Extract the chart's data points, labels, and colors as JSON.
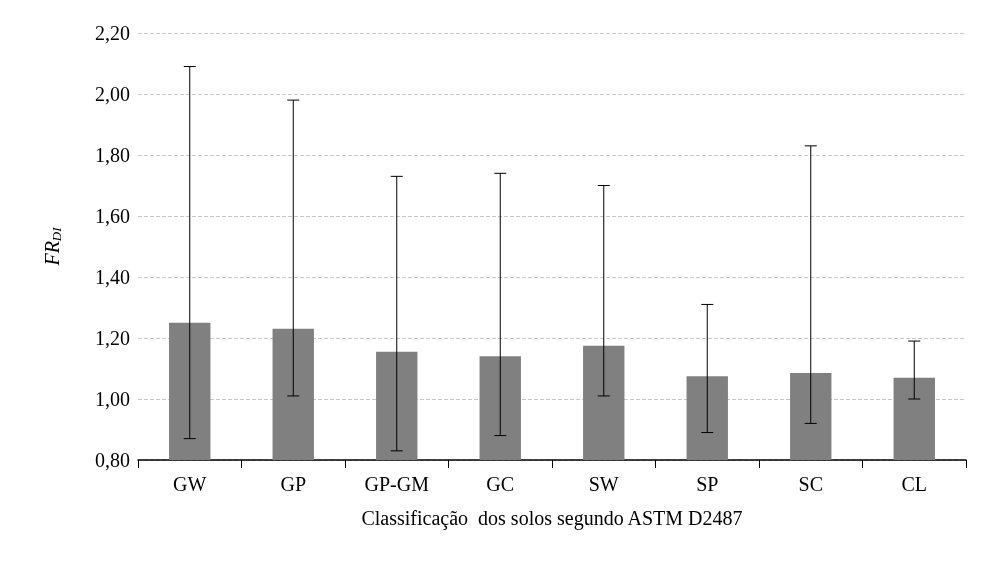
{
  "chart_data": {
    "type": "bar",
    "xlabel": "Classificação  dos solos segundo ASTM D2487",
    "ylabel": "FR$_{DI}$",
    "categories": [
      "GW",
      "GP",
      "GP-GM",
      "GC",
      "SW",
      "SP",
      "SC",
      "CL"
    ],
    "values": [
      1.25,
      1.23,
      1.155,
      1.14,
      1.175,
      1.075,
      1.085,
      1.07
    ],
    "errors": [
      [
        0.87,
        2.09
      ],
      [
        1.01,
        1.98
      ],
      [
        0.83,
        1.73
      ],
      [
        0.88,
        1.74
      ],
      [
        1.01,
        1.7
      ],
      [
        0.89,
        1.31
      ],
      [
        0.92,
        1.83
      ],
      [
        1.0,
        1.19
      ]
    ],
    "color": "#808080",
    "ylim": [
      0.8,
      2.2
    ],
    "yticks": [
      {
        "value": 0.8,
        "label": "0,80"
      },
      {
        "value": 1.0,
        "label": "1,00"
      },
      {
        "value": 1.2,
        "label": "1,20"
      },
      {
        "value": 1.4,
        "label": "1,40"
      },
      {
        "value": 1.6,
        "label": "1,60"
      },
      {
        "value": 1.8,
        "label": "1,80"
      },
      {
        "value": 2.0,
        "label": "2,00"
      },
      {
        "value": 2.2,
        "label": "2,20"
      }
    ],
    "grid": "y"
  }
}
